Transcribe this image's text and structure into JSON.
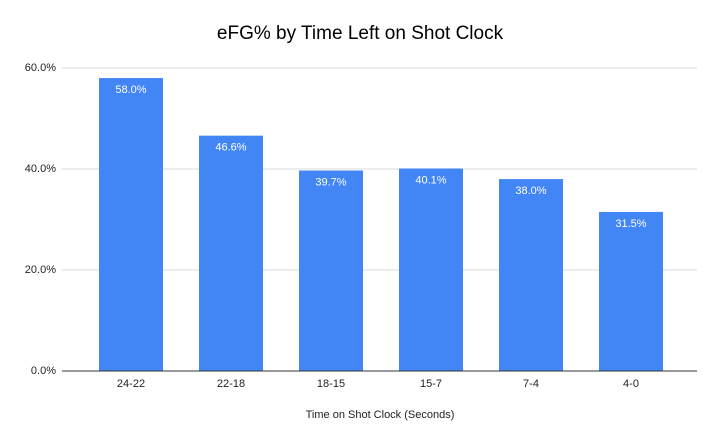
{
  "chart_data": {
    "type": "bar",
    "title": "eFG% by Time Left on Shot Clock",
    "x_label": "Time on Shot Clock (Seconds)",
    "categories": [
      "24-22",
      "22-18",
      "18-15",
      "15-7",
      "7-4",
      "4-0"
    ],
    "values": [
      58.0,
      46.6,
      39.7,
      40.1,
      38.0,
      31.5
    ],
    "value_labels": [
      "58.0%",
      "46.6%",
      "39.7%",
      "40.1%",
      "38.0%",
      "31.5%"
    ],
    "color": "#4285f4",
    "ylim": [
      0,
      60
    ],
    "yticks": [
      {
        "value": 0,
        "label": "0.0%"
      },
      {
        "value": 20,
        "label": "20.0%"
      },
      {
        "value": 40,
        "label": "40.0%"
      },
      {
        "value": 60,
        "label": "60.0%"
      }
    ],
    "grid": true
  }
}
